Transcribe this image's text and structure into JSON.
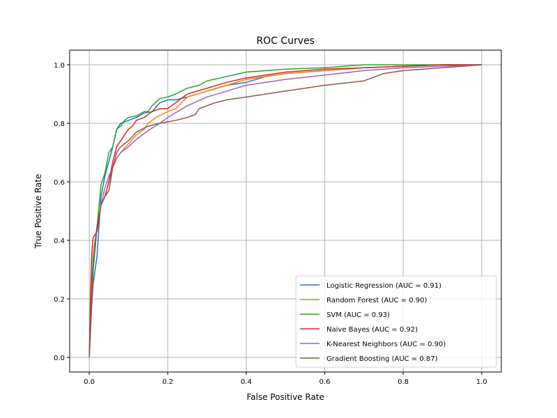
{
  "chart_data": {
    "type": "line",
    "title": "ROC Curves",
    "xlabel": "False Positive Rate",
    "ylabel": "True Positive Rate",
    "xlim": [
      -0.05,
      1.05
    ],
    "ylim": [
      -0.05,
      1.05
    ],
    "grid": true,
    "legend_position": "bottom-right",
    "x_ticks": [
      "0.0",
      "0.2",
      "0.4",
      "0.6",
      "0.8",
      "1.0"
    ],
    "y_ticks": [
      "0.0",
      "0.2",
      "0.4",
      "0.6",
      "0.8",
      "1.0"
    ],
    "series": [
      {
        "name": "Logistic Regression (AUC = 0.91)",
        "color": "#1f77b4",
        "x": [
          0,
          0.005,
          0.01,
          0.02,
          0.03,
          0.04,
          0.05,
          0.06,
          0.07,
          0.08,
          0.09,
          0.1,
          0.12,
          0.14,
          0.16,
          0.18,
          0.2,
          0.22,
          0.25,
          0.3,
          0.35,
          0.4,
          0.45,
          0.5,
          0.6,
          0.7,
          0.8,
          0.9,
          1.0
        ],
        "y": [
          0,
          0.15,
          0.25,
          0.35,
          0.55,
          0.62,
          0.67,
          0.72,
          0.78,
          0.8,
          0.805,
          0.81,
          0.82,
          0.835,
          0.84,
          0.87,
          0.88,
          0.88,
          0.89,
          0.91,
          0.93,
          0.94,
          0.96,
          0.97,
          0.98,
          0.99,
          0.995,
          1.0,
          1.0
        ]
      },
      {
        "name": "Random Forest (AUC = 0.90)",
        "color": "#ff7f0e",
        "x": [
          0,
          0.005,
          0.01,
          0.02,
          0.03,
          0.04,
          0.05,
          0.06,
          0.07,
          0.08,
          0.1,
          0.12,
          0.14,
          0.15,
          0.17,
          0.2,
          0.22,
          0.25,
          0.3,
          0.35,
          0.4,
          0.5,
          0.6,
          0.7,
          0.8,
          0.9,
          1.0
        ],
        "y": [
          0,
          0.15,
          0.3,
          0.45,
          0.52,
          0.55,
          0.6,
          0.65,
          0.68,
          0.7,
          0.73,
          0.76,
          0.78,
          0.8,
          0.82,
          0.84,
          0.85,
          0.89,
          0.91,
          0.93,
          0.95,
          0.97,
          0.98,
          0.99,
          0.995,
          1.0,
          1.0
        ]
      },
      {
        "name": "SVM (AUC = 0.93)",
        "color": "#2ca02c",
        "x": [
          0,
          0.005,
          0.01,
          0.02,
          0.03,
          0.04,
          0.05,
          0.06,
          0.07,
          0.08,
          0.09,
          0.1,
          0.12,
          0.14,
          0.15,
          0.16,
          0.18,
          0.2,
          0.22,
          0.25,
          0.28,
          0.3,
          0.35,
          0.4,
          0.45,
          0.5,
          0.6,
          0.7,
          0.8,
          0.9,
          1.0
        ],
        "y": [
          0,
          0.2,
          0.35,
          0.45,
          0.59,
          0.63,
          0.7,
          0.72,
          0.78,
          0.79,
          0.81,
          0.82,
          0.825,
          0.84,
          0.84,
          0.86,
          0.885,
          0.89,
          0.9,
          0.92,
          0.93,
          0.945,
          0.96,
          0.975,
          0.98,
          0.985,
          0.99,
          1.0,
          1.0,
          1.0,
          1.0
        ]
      },
      {
        "name": "Naive Bayes (AUC = 0.92)",
        "color": "#d62728",
        "x": [
          0,
          0.003,
          0.006,
          0.01,
          0.02,
          0.03,
          0.04,
          0.05,
          0.06,
          0.07,
          0.08,
          0.09,
          0.1,
          0.11,
          0.12,
          0.14,
          0.16,
          0.18,
          0.2,
          0.22,
          0.25,
          0.3,
          0.35,
          0.4,
          0.45,
          0.5,
          0.6,
          0.7,
          0.8,
          0.9,
          1.0
        ],
        "y": [
          0,
          0.2,
          0.35,
          0.41,
          0.43,
          0.52,
          0.55,
          0.6,
          0.67,
          0.72,
          0.74,
          0.76,
          0.78,
          0.79,
          0.81,
          0.82,
          0.84,
          0.85,
          0.85,
          0.87,
          0.9,
          0.92,
          0.94,
          0.955,
          0.965,
          0.975,
          0.985,
          0.99,
          0.995,
          1.0,
          1.0
        ]
      },
      {
        "name": "K-Nearest Neighbors (AUC = 0.90)",
        "color": "#9467bd",
        "x": [
          0,
          0.005,
          0.01,
          0.02,
          0.03,
          0.04,
          0.05,
          0.06,
          0.07,
          0.08,
          0.1,
          0.12,
          0.15,
          0.18,
          0.2,
          0.25,
          0.3,
          0.35,
          0.4,
          0.5,
          0.6,
          0.7,
          0.8,
          0.9,
          1.0
        ],
        "y": [
          0,
          0.15,
          0.3,
          0.45,
          0.52,
          0.58,
          0.62,
          0.65,
          0.68,
          0.7,
          0.72,
          0.745,
          0.775,
          0.8,
          0.82,
          0.86,
          0.89,
          0.91,
          0.93,
          0.95,
          0.965,
          0.98,
          0.99,
          0.995,
          1.0
        ]
      },
      {
        "name": "Gradient Boosting (AUC = 0.87)",
        "color": "#8c564b",
        "x": [
          0,
          0.005,
          0.01,
          0.02,
          0.03,
          0.04,
          0.05,
          0.06,
          0.07,
          0.08,
          0.09,
          0.1,
          0.12,
          0.15,
          0.18,
          0.2,
          0.22,
          0.25,
          0.27,
          0.28,
          0.3,
          0.32,
          0.35,
          0.4,
          0.5,
          0.6,
          0.7,
          0.73,
          0.75,
          0.8,
          0.9,
          1.0
        ],
        "y": [
          0,
          0.15,
          0.3,
          0.45,
          0.52,
          0.55,
          0.57,
          0.65,
          0.7,
          0.72,
          0.73,
          0.74,
          0.77,
          0.79,
          0.8,
          0.805,
          0.81,
          0.82,
          0.83,
          0.85,
          0.86,
          0.87,
          0.88,
          0.89,
          0.91,
          0.93,
          0.945,
          0.96,
          0.97,
          0.98,
          0.99,
          1.0
        ]
      }
    ]
  }
}
